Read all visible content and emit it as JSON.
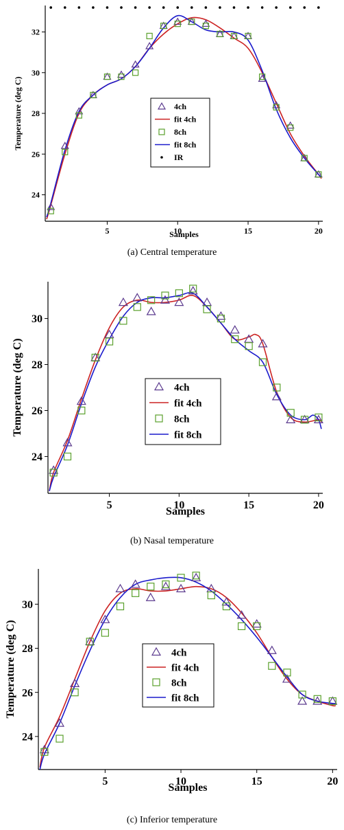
{
  "chart_data": [
    {
      "type": "scatter",
      "caption": "(a) Central temperature",
      "xlabel": "Samples",
      "ylabel": "Temperature (deg C)",
      "xlim": [
        0.6,
        20.3
      ],
      "ylim": [
        22.7,
        33.3
      ],
      "xticks": [
        5,
        10,
        15,
        20
      ],
      "yticks": [
        24,
        26,
        28,
        30,
        32
      ],
      "legend_position": "center",
      "legend": [
        "4ch",
        "fit 4ch",
        "8ch",
        "fit 8ch",
        "IR"
      ],
      "series": [
        {
          "name": "4ch",
          "kind": "marker",
          "marker": "triangle",
          "color": "#5b3a8e",
          "x": [
            1,
            2,
            3,
            4,
            5,
            6,
            7,
            8,
            9,
            10,
            11,
            12,
            13,
            14,
            15,
            16,
            17,
            18,
            19,
            20
          ],
          "y": [
            23.4,
            26.4,
            28.1,
            28.9,
            29.8,
            29.9,
            30.4,
            31.3,
            32.3,
            32.5,
            32.5,
            32.4,
            31.9,
            31.8,
            31.8,
            29.7,
            28.4,
            27.4,
            25.8,
            25.0
          ]
        },
        {
          "name": "fit 4ch",
          "kind": "line",
          "color": "#cc2222",
          "x": [
            0.7,
            1,
            2,
            3,
            4,
            5,
            6,
            7,
            8,
            9,
            10,
            11,
            12,
            13,
            14,
            15,
            16,
            17,
            18,
            19,
            20,
            20.2
          ],
          "y": [
            22.8,
            23.5,
            26.0,
            28.0,
            28.9,
            29.4,
            29.7,
            30.3,
            31.2,
            31.9,
            32.4,
            32.7,
            32.6,
            32.2,
            31.7,
            31.2,
            30.0,
            28.5,
            27.0,
            25.9,
            25.0,
            24.8
          ]
        },
        {
          "name": "8ch",
          "kind": "marker",
          "marker": "square",
          "color": "#5aa02c",
          "x": [
            1,
            2,
            3,
            4,
            5,
            6,
            7,
            8,
            9,
            10,
            11,
            12,
            13,
            14,
            15,
            16,
            17,
            18,
            19,
            20
          ],
          "y": [
            23.2,
            26.1,
            27.9,
            28.9,
            29.8,
            29.8,
            30.0,
            31.8,
            32.3,
            32.4,
            32.5,
            32.3,
            31.9,
            31.8,
            31.8,
            29.8,
            28.3,
            27.3,
            25.8,
            25.0
          ]
        },
        {
          "name": "fit 8ch",
          "kind": "line",
          "color": "#1a1acc",
          "x": [
            0.7,
            1,
            2,
            3,
            4,
            5,
            6,
            7,
            8,
            9,
            10,
            11,
            12,
            13,
            14,
            15,
            16,
            17,
            18,
            19,
            20,
            20.2
          ],
          "y": [
            22.9,
            23.6,
            26.2,
            28.1,
            28.9,
            29.4,
            29.7,
            30.3,
            31.2,
            32.2,
            32.8,
            32.5,
            32.1,
            32.0,
            32.0,
            31.6,
            30.1,
            28.2,
            26.8,
            25.8,
            25.0,
            24.9
          ]
        },
        {
          "name": "IR",
          "kind": "dots",
          "color": "#000000",
          "x": [
            1,
            2,
            3,
            4,
            5,
            6,
            7,
            8,
            9,
            10,
            11,
            12,
            13,
            14,
            15,
            16,
            17,
            18,
            19,
            20
          ],
          "y": [
            33.2,
            33.2,
            33.2,
            33.2,
            33.2,
            33.2,
            33.2,
            33.2,
            33.2,
            33.2,
            33.2,
            33.2,
            33.2,
            33.2,
            33.2,
            33.2,
            33.2,
            33.2,
            33.2,
            33.2
          ]
        }
      ]
    },
    {
      "type": "scatter",
      "caption": "(b) Nasal temperature",
      "xlabel": "Samples",
      "ylabel": "Temperature (deg C)",
      "xlim": [
        0.6,
        20.3
      ],
      "ylim": [
        22.4,
        31.6
      ],
      "xticks": [
        5,
        10,
        15,
        20
      ],
      "yticks": [
        24,
        26,
        28,
        30
      ],
      "legend_position": "center",
      "legend": [
        "4ch",
        "fit 4ch",
        "8ch",
        "fit 8ch"
      ],
      "series": [
        {
          "name": "4ch",
          "kind": "marker",
          "marker": "triangle",
          "color": "#5b3a8e",
          "x": [
            1,
            2,
            3,
            4,
            5,
            6,
            7,
            8,
            9,
            10,
            11,
            12,
            13,
            14,
            15,
            16,
            17,
            18,
            19,
            20
          ],
          "y": [
            23.4,
            24.6,
            26.4,
            28.3,
            29.3,
            30.7,
            30.9,
            30.3,
            30.8,
            30.7,
            31.2,
            30.7,
            30.1,
            29.5,
            29.1,
            28.9,
            26.6,
            25.6,
            25.6,
            25.6
          ]
        },
        {
          "name": "fit 4ch",
          "kind": "line",
          "color": "#cc2222",
          "x": [
            0.7,
            1,
            2,
            3,
            4,
            5,
            6,
            7,
            8,
            9,
            10,
            11,
            12,
            13,
            14,
            15,
            15.5,
            16,
            17,
            18,
            19,
            20,
            20.2
          ],
          "y": [
            22.5,
            23.3,
            24.7,
            26.5,
            28.2,
            29.6,
            30.5,
            30.8,
            30.7,
            30.7,
            30.8,
            31.0,
            30.5,
            29.8,
            29.1,
            29.2,
            29.3,
            28.9,
            26.8,
            25.7,
            25.5,
            25.6,
            25.5
          ]
        },
        {
          "name": "8ch",
          "kind": "marker",
          "marker": "square",
          "color": "#5aa02c",
          "x": [
            1,
            2,
            3,
            4,
            5,
            6,
            7,
            8,
            9,
            10,
            11,
            12,
            13,
            14,
            15,
            16,
            17,
            18,
            19,
            20
          ],
          "y": [
            23.3,
            24.0,
            26.0,
            28.3,
            29.0,
            29.9,
            30.5,
            30.8,
            31.0,
            31.1,
            31.3,
            30.4,
            30.0,
            29.1,
            28.8,
            28.1,
            27.0,
            25.9,
            25.6,
            25.7
          ]
        },
        {
          "name": "fit 8ch",
          "kind": "line",
          "color": "#1a1acc",
          "x": [
            0.7,
            1,
            2,
            3,
            4,
            5,
            6,
            7,
            8,
            9,
            10,
            11,
            12,
            13,
            14,
            15,
            16,
            17,
            18,
            19,
            19.6,
            20,
            20.2
          ],
          "y": [
            22.5,
            23.1,
            24.5,
            26.3,
            27.9,
            29.1,
            30.1,
            30.7,
            30.9,
            30.9,
            31.0,
            31.1,
            30.5,
            29.8,
            29.1,
            28.6,
            28.1,
            26.7,
            25.8,
            25.6,
            25.8,
            25.6,
            25.2
          ]
        }
      ]
    },
    {
      "type": "scatter",
      "caption": "(c) Inferior temperature",
      "xlabel": "Samples",
      "ylabel": "Temperature (deg C)",
      "xlim": [
        0.6,
        20.3
      ],
      "ylim": [
        22.5,
        31.6
      ],
      "xticks": [
        5,
        10,
        15,
        20
      ],
      "yticks": [
        24,
        26,
        28,
        30
      ],
      "legend_position": "center",
      "legend": [
        "4ch",
        "fit 4ch",
        "8ch",
        "fit 8ch"
      ],
      "series": [
        {
          "name": "4ch",
          "kind": "marker",
          "marker": "triangle",
          "color": "#5b3a8e",
          "x": [
            1,
            2,
            3,
            4,
            5,
            6,
            7,
            8,
            9,
            10,
            11,
            12,
            13,
            14,
            15,
            16,
            17,
            18,
            19,
            20
          ],
          "y": [
            23.4,
            24.6,
            26.4,
            28.3,
            29.3,
            30.7,
            30.9,
            30.3,
            30.8,
            30.7,
            31.2,
            30.7,
            30.1,
            29.5,
            29.1,
            27.9,
            26.6,
            25.6,
            25.6,
            25.6
          ]
        },
        {
          "name": "fit 4ch",
          "kind": "line",
          "color": "#cc2222",
          "x": [
            0.7,
            1,
            2,
            3,
            4,
            5,
            6,
            7,
            8,
            9,
            10,
            11,
            12,
            13,
            14,
            15,
            16,
            17,
            18,
            19,
            20,
            20.2
          ],
          "y": [
            22.6,
            23.5,
            24.9,
            26.6,
            28.3,
            29.7,
            30.5,
            30.7,
            30.6,
            30.6,
            30.7,
            30.8,
            30.7,
            30.3,
            29.6,
            28.7,
            27.6,
            26.6,
            25.9,
            25.6,
            25.4,
            25.4
          ]
        },
        {
          "name": "8ch",
          "kind": "marker",
          "marker": "square",
          "color": "#5aa02c",
          "x": [
            1,
            2,
            3,
            4,
            5,
            6,
            7,
            8,
            9,
            10,
            11,
            12,
            13,
            14,
            15,
            16,
            17,
            18,
            19,
            20
          ],
          "y": [
            23.3,
            23.9,
            26.0,
            28.3,
            28.7,
            29.9,
            30.5,
            30.8,
            30.9,
            31.2,
            31.3,
            30.4,
            29.9,
            29.0,
            29.0,
            27.2,
            26.9,
            25.9,
            25.7,
            25.6
          ]
        },
        {
          "name": "fit 8ch",
          "kind": "line",
          "color": "#1a1acc",
          "x": [
            0.7,
            1,
            2,
            3,
            4,
            5,
            6,
            7,
            8,
            9,
            10,
            11,
            12,
            13,
            14,
            15,
            16,
            17,
            18,
            19,
            20,
            20.2
          ],
          "y": [
            22.5,
            23.2,
            24.6,
            26.3,
            27.9,
            29.3,
            30.3,
            30.9,
            31.1,
            31.2,
            31.2,
            31.0,
            30.6,
            30.0,
            29.3,
            28.5,
            27.6,
            26.7,
            25.9,
            25.6,
            25.5,
            25.5
          ]
        }
      ]
    }
  ]
}
